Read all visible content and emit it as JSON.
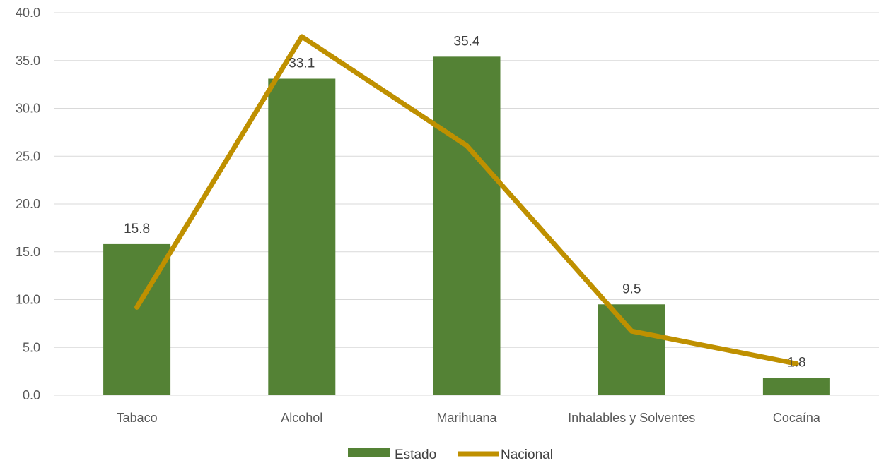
{
  "chart_data": {
    "type": "bar",
    "categories": [
      "Tabaco",
      "Alcohol",
      "Marihuana",
      "Inhalables y Solventes",
      "Cocaína"
    ],
    "series": [
      {
        "name": "Estado",
        "type": "bar",
        "values": [
          15.8,
          33.1,
          35.4,
          9.5,
          1.8
        ],
        "data_labels": [
          "15.8",
          "33.1",
          "35.4",
          "9.5",
          "1.8"
        ],
        "color": "#548235"
      },
      {
        "name": "Nacional",
        "type": "line",
        "values": [
          9.2,
          37.5,
          26.1,
          6.7,
          3.3
        ],
        "color": "#BF9000"
      }
    ],
    "ylim": [
      0,
      40
    ],
    "yticks": [
      "0.0",
      "5.0",
      "10.0",
      "15.0",
      "20.0",
      "25.0",
      "30.0",
      "35.0",
      "40.0"
    ],
    "grid": true,
    "legend_position": "bottom",
    "title": "",
    "xlabel": "",
    "ylabel": ""
  }
}
